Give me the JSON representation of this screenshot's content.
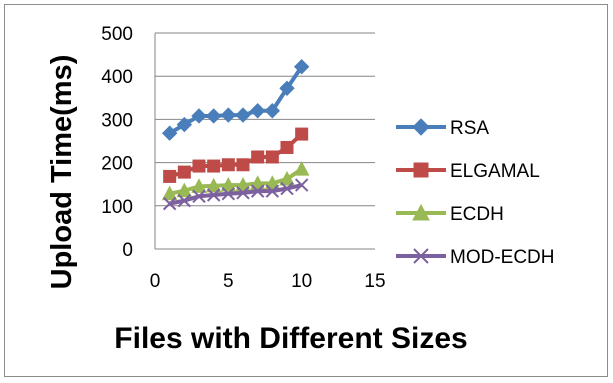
{
  "chart_data": {
    "type": "line",
    "title": "",
    "xlabel": "Files with Different Sizes",
    "ylabel": "Upload Time(ms)",
    "xlim": [
      0,
      15
    ],
    "ylim": [
      0,
      500
    ],
    "xticks": [
      0,
      5,
      10,
      15
    ],
    "yticks": [
      0,
      100,
      200,
      300,
      400,
      500
    ],
    "grid": "horizontal",
    "legend_position": "right",
    "x": [
      1,
      2,
      3,
      4,
      5,
      6,
      7,
      8,
      9,
      10
    ],
    "series": [
      {
        "name": "RSA",
        "color": "#4a7ebb",
        "marker": "diamond",
        "values": [
          268,
          288,
          308,
          308,
          310,
          310,
          320,
          320,
          372,
          422
        ]
      },
      {
        "name": "ELGAMAL",
        "color": "#be4b48",
        "marker": "square",
        "values": [
          168,
          178,
          192,
          192,
          195,
          195,
          213,
          213,
          235,
          266
        ]
      },
      {
        "name": "ECDH",
        "color": "#98b954",
        "marker": "triangle",
        "values": [
          128,
          135,
          145,
          146,
          148,
          148,
          152,
          152,
          162,
          185
        ]
      },
      {
        "name": "MOD-ECDH",
        "color": "#7d60a0",
        "marker": "x",
        "values": [
          105,
          112,
          122,
          125,
          128,
          130,
          134,
          134,
          140,
          148
        ]
      }
    ]
  }
}
